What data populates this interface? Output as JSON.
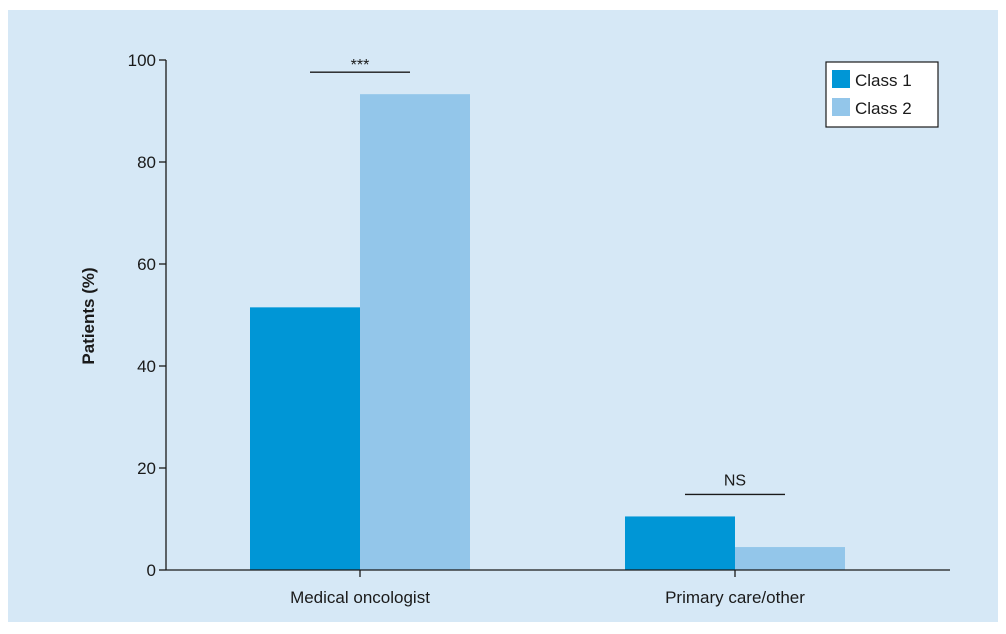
{
  "chart_data": {
    "type": "bar",
    "categories": [
      "Medical oncologist",
      "Primary care/other"
    ],
    "series": [
      {
        "name": "Class 1",
        "values": [
          51.5,
          10.5
        ],
        "color": "#0096d6"
      },
      {
        "name": "Class 2",
        "values": [
          93.3,
          4.5
        ],
        "color": "#93c6ea"
      }
    ],
    "title": "",
    "xlabel": "",
    "ylabel": "Patients (%)",
    "ylim": [
      0,
      100
    ],
    "yticks": [
      0,
      20,
      40,
      60,
      80,
      100
    ],
    "yticks_labels": [
      "0",
      "20",
      "40",
      "60",
      "80",
      "100"
    ],
    "grid": false,
    "legend_position": "top-right",
    "annotations": [
      {
        "category": "Medical oncologist",
        "text": "***"
      },
      {
        "category": "Primary care/other",
        "text": "NS"
      }
    ]
  }
}
